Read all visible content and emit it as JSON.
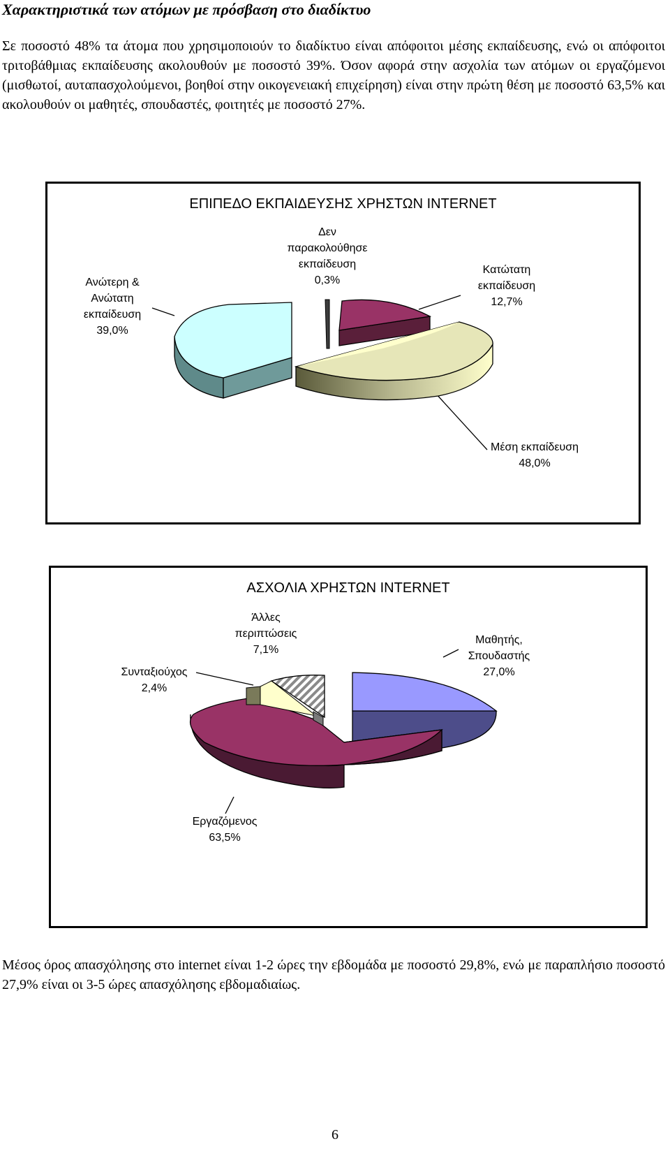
{
  "heading": "Χαρακτηριστικά των ατόμων με πρόσβαση στο διαδίκτυο",
  "paragraph1": "Σε ποσοστό 48% τα άτομα που χρησιμοποιούν το διαδίκτυο είναι απόφοιτοι μέσης εκπαίδευσης, ενώ οι απόφοιτοι τριτοβάθμιας εκπαίδευσης ακολουθούν με ποσοστό 39%. Όσον αφορά στην ασχολία των ατόμων οι εργαζόμενοι (μισθωτοί, αυταπασχολούμενοι, βοηθοί στην οικογενειακή επιχείρηση) είναι στην πρώτη θέση με ποσοστό 63,5% και ακολουθούν οι μαθητές, σπουδαστές, φοιτητές με ποσοστό 27%.",
  "paragraph2": "Μέσος όρος απασχόλησης στο internet είναι 1-2 ώρες την εβδομάδα με ποσοστό 29,8%, ενώ με παραπλήσιο ποσοστό 27,9% είναι οι 3-5 ώρες απασχόλησης εβδομαδιαίως.",
  "page_number": "6",
  "chart_data": [
    {
      "type": "pie",
      "title": "ΕΠΙΠΕΔΟ ΕΚΠΑΙΔΕΥΣΗΣ ΧΡΗΣΤΩΝ INTERNET",
      "style": "3d-exploded",
      "slices": [
        {
          "label_lines": [
            "Δεν",
            "παρακολούθησε",
            "εκπαίδευση"
          ],
          "value_label": "0,3%",
          "value": 0.3,
          "color": "#3d3d3d"
        },
        {
          "label_lines": [
            "Κατώτατη",
            "εκπαίδευση"
          ],
          "value_label": "12,7%",
          "value": 12.7,
          "color": "#993366"
        },
        {
          "label_lines": [
            "Μέση εκπαίδευση"
          ],
          "value_label": "48,0%",
          "value": 48.0,
          "color": "#ffffcc"
        },
        {
          "label_lines": [
            "Ανώτερη &",
            "Ανώτατη",
            "εκπαίδευση"
          ],
          "value_label": "39,0%",
          "value": 39.0,
          "color": "#ccffff"
        }
      ]
    },
    {
      "type": "pie",
      "title": "ΑΣΧΟΛΙΑ ΧΡΗΣΤΩΝ INTERNET",
      "style": "3d-exploded",
      "slices": [
        {
          "label_lines": [
            "Μαθητής,",
            "Σπουδαστής"
          ],
          "value_label": "27,0%",
          "value": 27.0,
          "color": "#9999ff"
        },
        {
          "label_lines": [
            "Εργαζόμενος"
          ],
          "value_label": "63,5%",
          "value": 63.5,
          "color": "#993366"
        },
        {
          "label_lines": [
            "Συνταξιούχος"
          ],
          "value_label": "2,4%",
          "value": 2.4,
          "color": "#ffffcc"
        },
        {
          "label_lines": [
            "Άλλες",
            "περιπτώσεις"
          ],
          "value_label": "7,1%",
          "value": 7.1,
          "color": "#d9d9d9"
        }
      ]
    }
  ]
}
